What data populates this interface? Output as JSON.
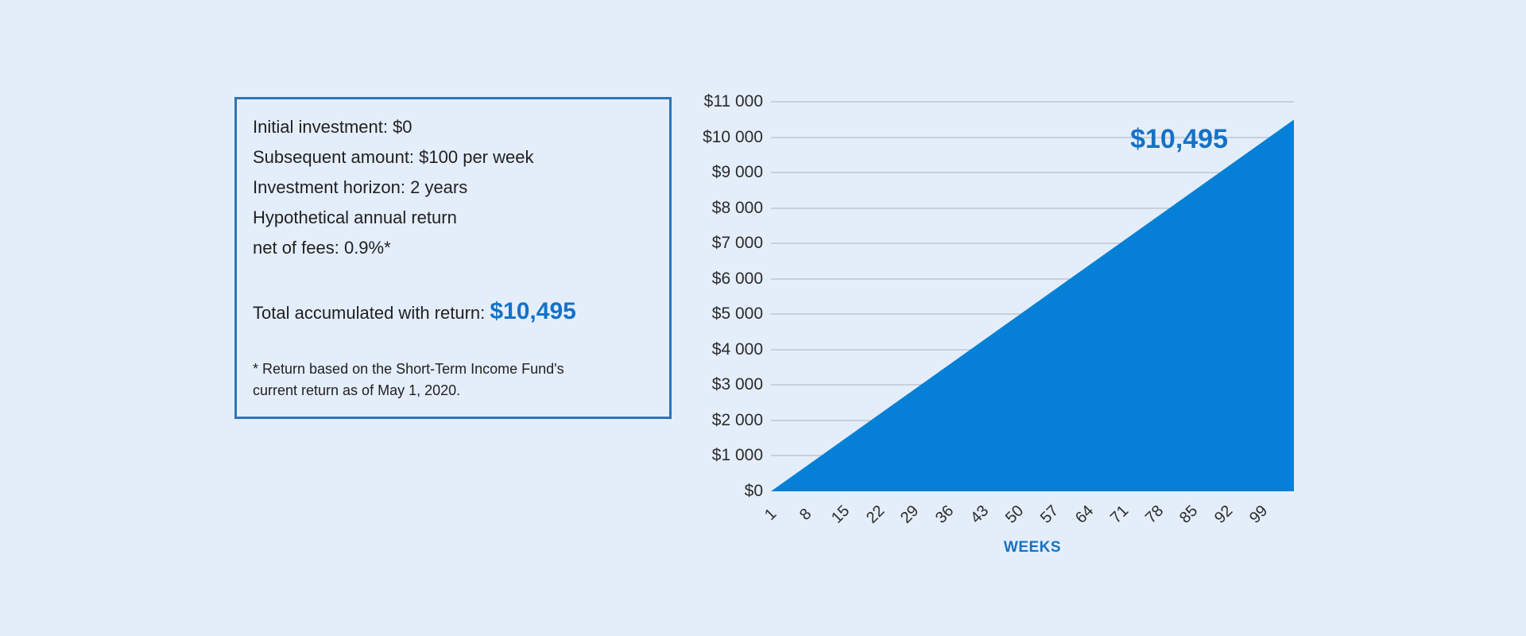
{
  "page": {
    "background": "#e4eefb",
    "accent_blue": "#1572c6",
    "box_border_blue": "#2e75b6"
  },
  "info_box": {
    "lines": [
      "Initial investment: $0",
      "Subsequent amount: $100 per week",
      "Investment horizon: 2 years",
      "Hypothetical annual return",
      "net of fees: 0.9%*"
    ],
    "total_label": "Total accumulated with return: ",
    "total_value": "$10,495",
    "footnote": "* Return based on the Short-Term Income Fund's current return as of May 1, 2020."
  },
  "chart_data": {
    "type": "area",
    "title": "",
    "xlabel": "WEEKS",
    "ylabel": "",
    "x_tick_values": [
      1,
      8,
      15,
      22,
      29,
      36,
      43,
      50,
      57,
      64,
      71,
      78,
      85,
      92,
      99
    ],
    "x_tick_labels": [
      "1",
      "8",
      "15",
      "22",
      "29",
      "36",
      "43",
      "50",
      "57",
      "64",
      "71",
      "78",
      "85",
      "92",
      "99"
    ],
    "y_tick_values": [
      0,
      1000,
      2000,
      3000,
      4000,
      5000,
      6000,
      7000,
      8000,
      9000,
      10000,
      11000
    ],
    "y_tick_labels": [
      "$0",
      "$1 000",
      "$2 000",
      "$3 000",
      "$4 000",
      "$5 000",
      "$6 000",
      "$7 000",
      "$8 000",
      "$9 000",
      "$10 000",
      "$11 000"
    ],
    "xlim": [
      1,
      106
    ],
    "ylim": [
      0,
      11000
    ],
    "grid": true,
    "legend": false,
    "series": [
      {
        "name": "accumulated_value",
        "points": [
          [
            1,
            0
          ],
          [
            106,
            10495
          ]
        ],
        "fill_color": "#0580d6"
      }
    ],
    "final_value": 10495,
    "annotation": {
      "text": "$10,495",
      "color": "#1572c6"
    },
    "colors": {
      "gridline": "#c8cfd9",
      "tick_text": "#2b2b2b",
      "xlabel_color": "#1572c6"
    }
  }
}
